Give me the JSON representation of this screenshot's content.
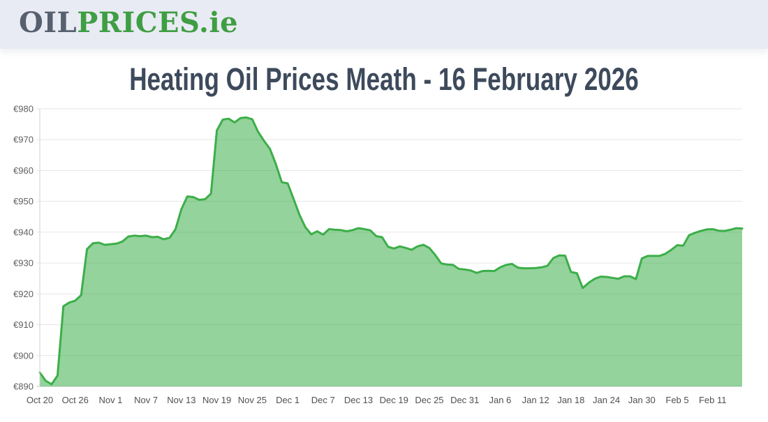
{
  "header": {
    "logo": {
      "oil": "OIL",
      "prices": "PRICES",
      "tld": ".ie"
    }
  },
  "page": {
    "title": "Heating Oil Prices Meath - 16 February 2026"
  },
  "colors": {
    "header_bg": "#e9ebf4",
    "logo_slate": "#56606f",
    "logo_green": "#3f9e43",
    "title": "#3d4a5c",
    "series_line": "#3cae49",
    "series_fill": "rgba(60,174,74,0.55)",
    "grid": "#e6e6e6",
    "axis_line": "#c9c9c9",
    "y_label": "#606060",
    "x_label": "#505050"
  },
  "chart_data": {
    "type": "area",
    "title": "Heating Oil Prices Meath - 16 February 2026",
    "x_start_label": "Oct 20",
    "x_tick_interval_days": 6,
    "x_tick_labels": [
      "Oct 20",
      "Oct 26",
      "Nov 1",
      "Nov 7",
      "Nov 13",
      "Nov 19",
      "Nov 25",
      "Dec 1",
      "Dec 7",
      "Dec 13",
      "Dec 19",
      "Dec 25",
      "Dec 31",
      "Jan 6",
      "Jan 12",
      "Jan 18",
      "Jan 24",
      "Jan 30",
      "Feb 5",
      "Feb 11"
    ],
    "y_tick_prefix": "€",
    "y_ticks": [
      890,
      900,
      910,
      920,
      930,
      940,
      950,
      960,
      970,
      980
    ],
    "ylim": [
      890,
      980
    ],
    "grid": "horizontal",
    "legend": "none",
    "values_daily": [
      894.5,
      891.8,
      890.7,
      893.5,
      916.0,
      917.2,
      917.8,
      919.6,
      934.5,
      936.4,
      936.6,
      935.9,
      936.1,
      936.3,
      937.0,
      938.6,
      938.9,
      938.7,
      938.9,
      938.4,
      938.5,
      937.7,
      938.2,
      941.0,
      947.5,
      951.6,
      951.4,
      950.5,
      950.7,
      952.5,
      973.0,
      976.5,
      976.8,
      975.6,
      977.0,
      977.2,
      976.6,
      972.5,
      969.6,
      967.0,
      962.0,
      956.2,
      955.8,
      950.8,
      945.6,
      941.6,
      939.3,
      940.3,
      939.2,
      941.0,
      940.8,
      940.7,
      940.3,
      940.7,
      941.3,
      941.0,
      940.6,
      938.7,
      938.4,
      935.3,
      934.7,
      935.4,
      934.9,
      934.3,
      935.4,
      935.9,
      934.9,
      932.6,
      929.9,
      929.5,
      929.4,
      928.1,
      927.9,
      927.6,
      926.8,
      927.4,
      927.5,
      927.4,
      928.6,
      929.4,
      929.7,
      928.5,
      928.3,
      928.3,
      928.4,
      928.6,
      929.1,
      931.6,
      932.5,
      932.4,
      927.1,
      926.7,
      921.9,
      923.6,
      924.9,
      925.6,
      925.5,
      925.2,
      924.9,
      925.7,
      925.7,
      924.8,
      931.5,
      932.3,
      932.3,
      932.3,
      933.0,
      934.3,
      935.8,
      935.6,
      939.0,
      939.8,
      940.4,
      940.9,
      941.0,
      940.5,
      940.4,
      940.8,
      941.3,
      941.2
    ]
  }
}
